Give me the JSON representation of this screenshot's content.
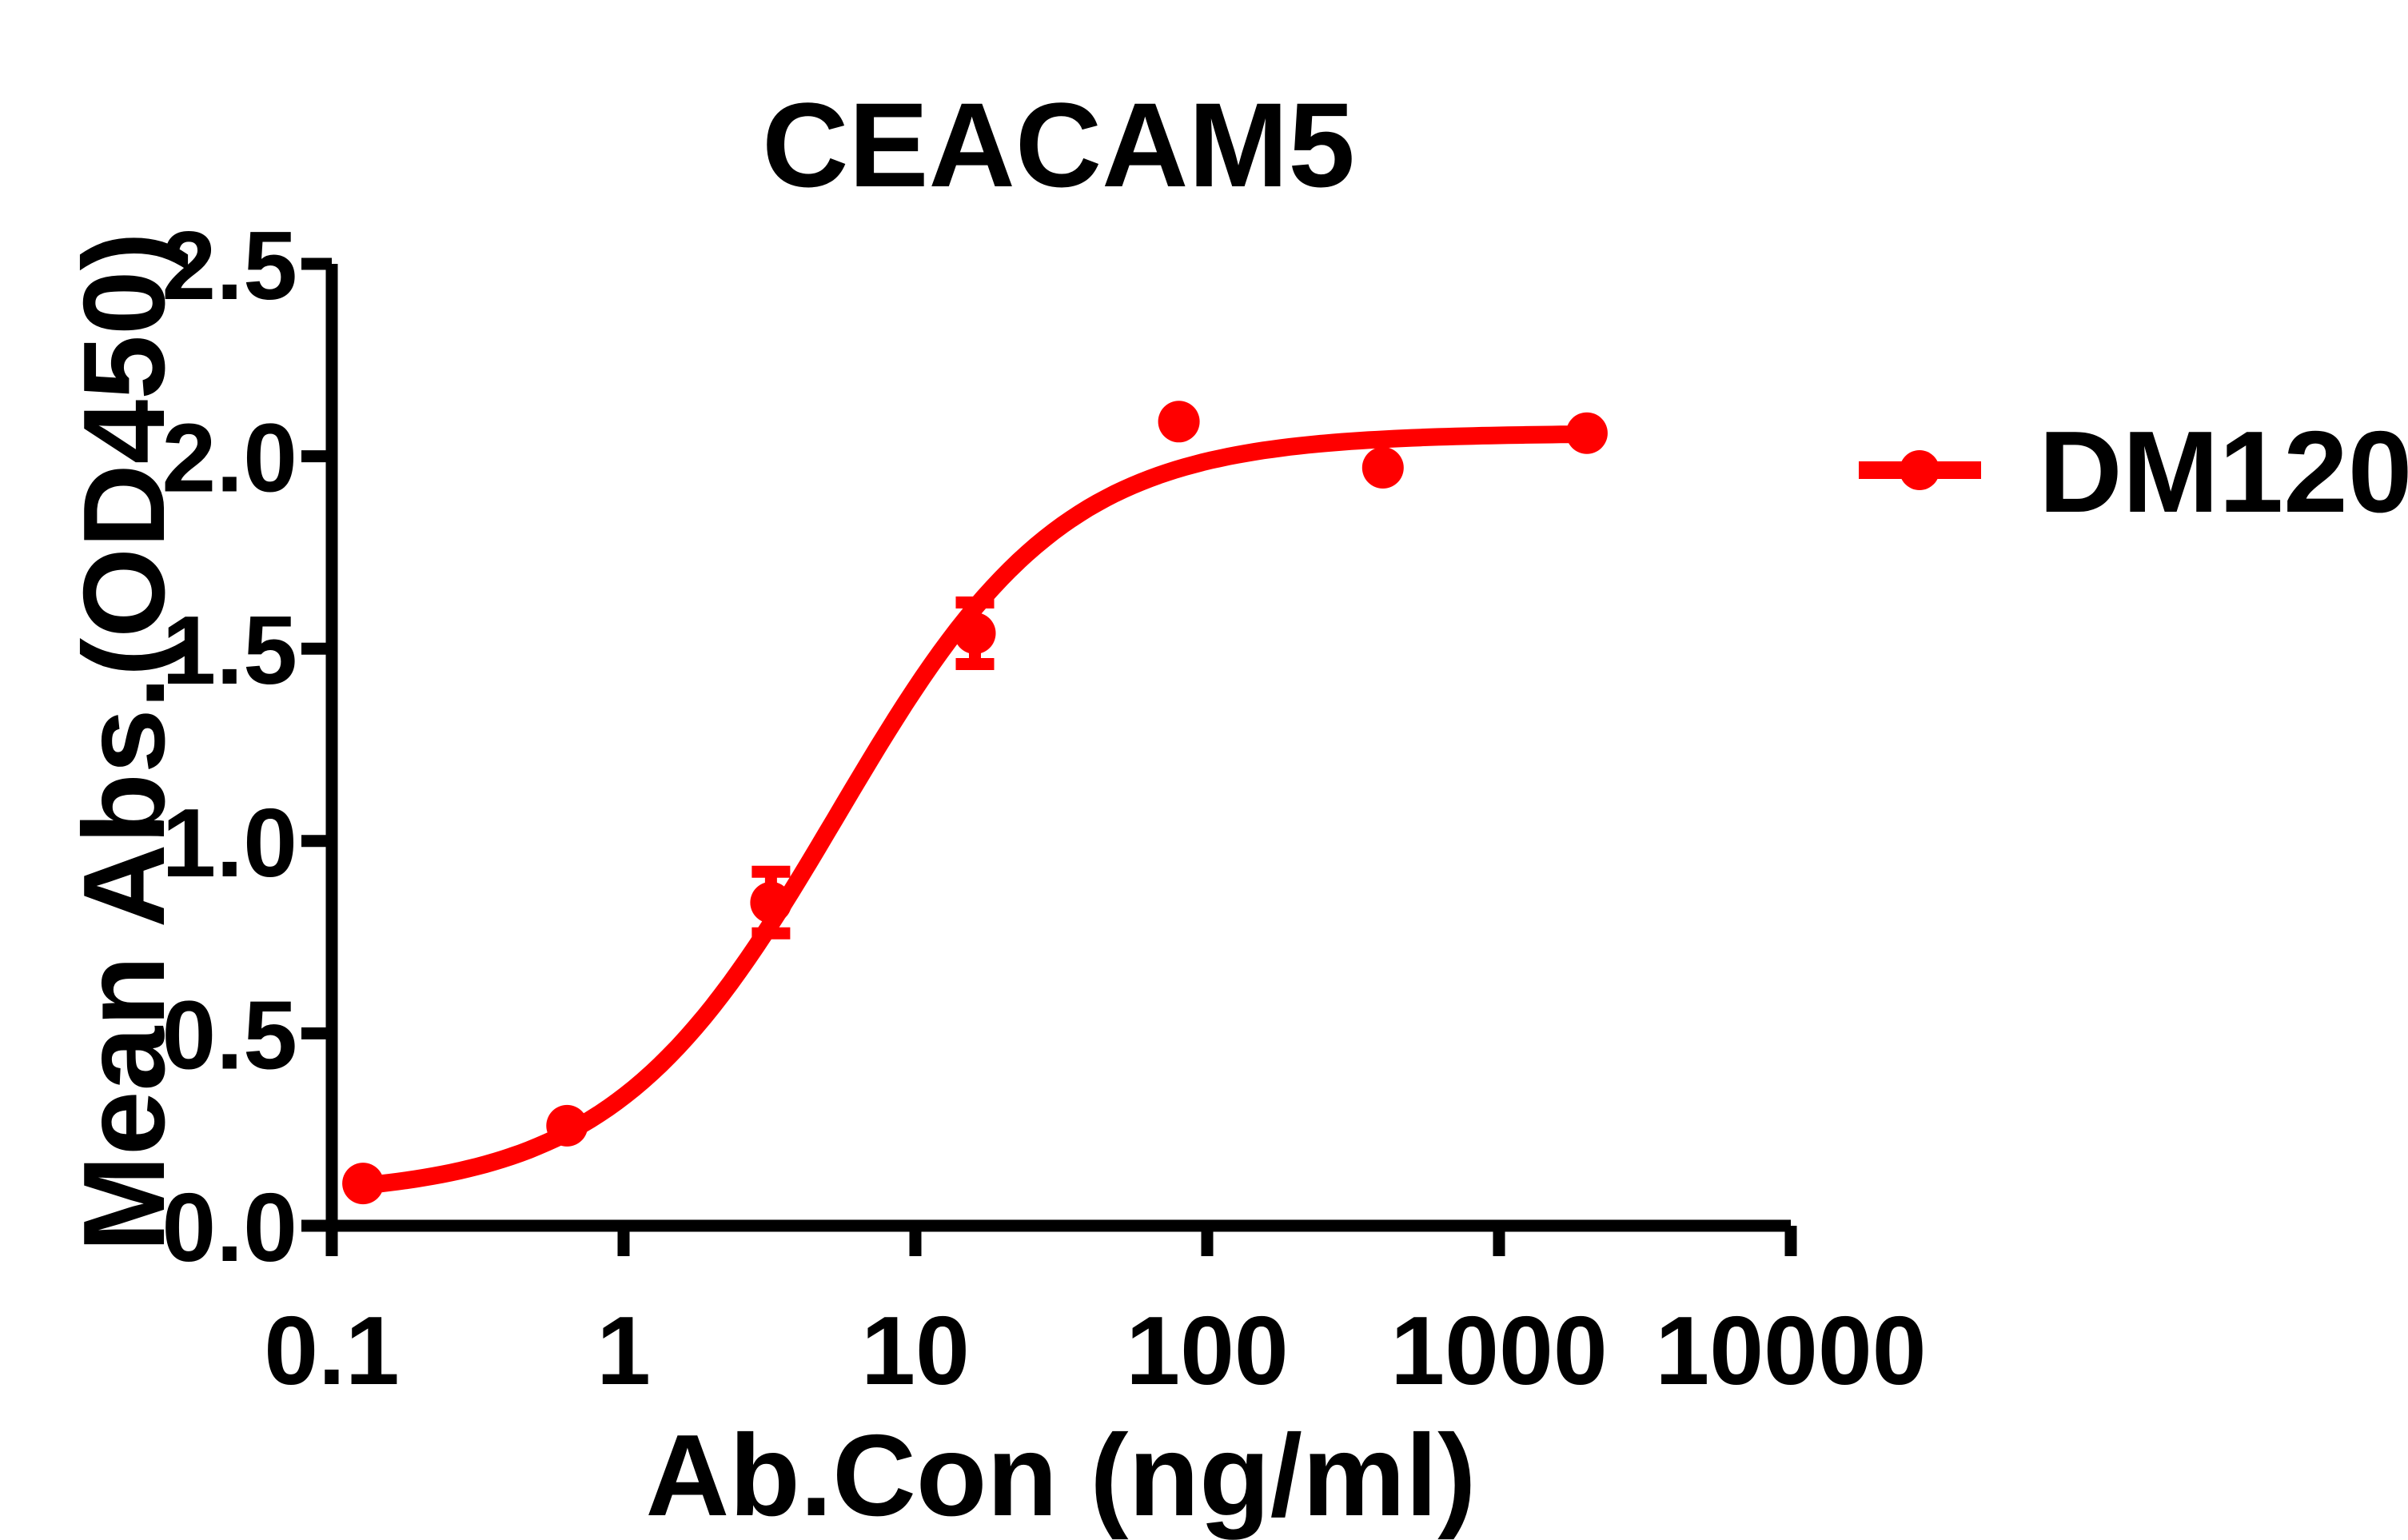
{
  "chart_data": {
    "type": "scatter",
    "title": "CEACAM5",
    "xlabel": "Ab.Con (ng/ml)",
    "ylabel": "Mean Abs.(OD450)",
    "xscale": "log",
    "xlim": [
      0.1,
      10000
    ],
    "ylim": [
      0.0,
      2.5
    ],
    "xticks": [
      0.1,
      1,
      10,
      100,
      1000,
      10000
    ],
    "xtick_labels": [
      "0.1",
      "1",
      "10",
      "100",
      "1000",
      "10000"
    ],
    "yticks": [
      0.0,
      0.5,
      1.0,
      1.5,
      2.0,
      2.5
    ],
    "ytick_labels": [
      "0.0",
      "0.5",
      "1.0",
      "1.5",
      "2.0",
      "2.5"
    ],
    "grid": false,
    "legend_position": "right",
    "series": [
      {
        "name": "DM120",
        "color": "#FF0000",
        "marker": "circle",
        "line": "4PL-fit",
        "x": [
          0.128,
          0.64,
          3.2,
          16,
          80,
          400,
          2000
        ],
        "y": [
          0.11,
          0.26,
          0.84,
          1.54,
          2.09,
          1.97,
          2.06
        ],
        "y_err": [
          0,
          0,
          0.08,
          0.08,
          0,
          0,
          0
        ],
        "curve_fit": {
          "model": "4PL",
          "bottom": 0.075,
          "top": 2.06,
          "ec50": 5.4,
          "hill": 1.12,
          "x_range": [
            0.128,
            2000
          ]
        }
      }
    ]
  },
  "colors": {
    "series": "#FF0000",
    "axis": "#000000",
    "text": "#000000",
    "background": "#FFFFFF"
  }
}
